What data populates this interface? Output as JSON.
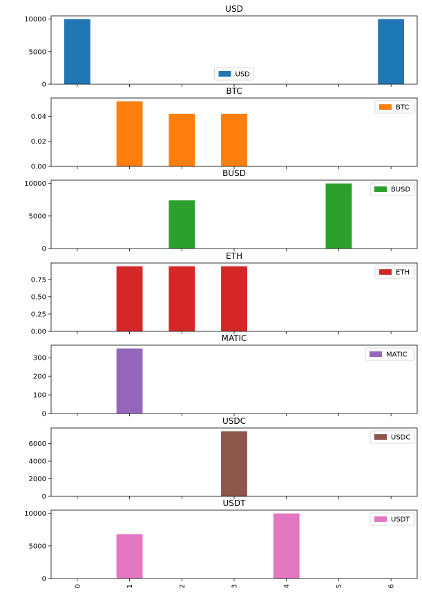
{
  "chart_data": {
    "type": "bar",
    "categories": [
      "0",
      "1",
      "2",
      "3",
      "4",
      "5",
      "6"
    ],
    "panels": [
      {
        "name": "USD",
        "title": "USD",
        "color": "#1f77b4",
        "values": [
          10000,
          0,
          0,
          0,
          0,
          0,
          10000
        ],
        "ylim": [
          0,
          10500
        ],
        "yticks": [
          0,
          5000,
          10000
        ],
        "yticklabels": [
          "0",
          "5000",
          "10000"
        ],
        "legend": "bottom-center"
      },
      {
        "name": "BTC",
        "title": "BTC",
        "color": "#ff7f0e",
        "values": [
          0,
          0.052,
          0.042,
          0.042,
          0,
          0,
          0
        ],
        "ylim": [
          0,
          0.0546
        ],
        "yticks": [
          0,
          0.02,
          0.04
        ],
        "yticklabels": [
          "0.00",
          "0.02",
          "0.04"
        ],
        "legend": "top-right"
      },
      {
        "name": "BUSD",
        "title": "BUSD",
        "color": "#2ca02c",
        "values": [
          0,
          0,
          7400,
          0,
          0,
          10000,
          0
        ],
        "ylim": [
          0,
          10500
        ],
        "yticks": [
          0,
          5000,
          10000
        ],
        "yticklabels": [
          "0",
          "5000",
          "10000"
        ],
        "legend": "top-right"
      },
      {
        "name": "ETH",
        "title": "ETH",
        "color": "#d62728",
        "values": [
          0,
          0.94,
          0.94,
          0.94,
          0,
          0,
          0
        ],
        "ylim": [
          0,
          0.987
        ],
        "yticks": [
          0,
          0.25,
          0.5,
          0.75
        ],
        "yticklabels": [
          "0.00",
          "0.25",
          "0.50",
          "0.75"
        ],
        "legend": "top-right"
      },
      {
        "name": "MATIC",
        "title": "MATIC",
        "color": "#9467bd",
        "values": [
          0,
          350,
          0,
          0,
          0,
          0,
          0
        ],
        "ylim": [
          0,
          367.5
        ],
        "yticks": [
          0,
          100,
          200,
          300
        ],
        "yticklabels": [
          "0",
          "100",
          "200",
          "300"
        ],
        "legend": "top-right"
      },
      {
        "name": "USDC",
        "title": "USDC",
        "color": "#8c564b",
        "values": [
          0,
          0,
          0,
          7400,
          0,
          0,
          0
        ],
        "ylim": [
          0,
          7770
        ],
        "yticks": [
          0,
          2000,
          4000,
          6000
        ],
        "yticklabels": [
          "0",
          "2000",
          "4000",
          "6000"
        ],
        "legend": "top-right"
      },
      {
        "name": "USDT",
        "title": "USDT",
        "color": "#e377c2",
        "values": [
          0,
          6800,
          0,
          0,
          10000,
          0,
          0
        ],
        "ylim": [
          0,
          10500
        ],
        "yticks": [
          0,
          5000,
          10000
        ],
        "yticklabels": [
          "0",
          "5000",
          "10000"
        ],
        "legend": "top-right"
      }
    ]
  }
}
